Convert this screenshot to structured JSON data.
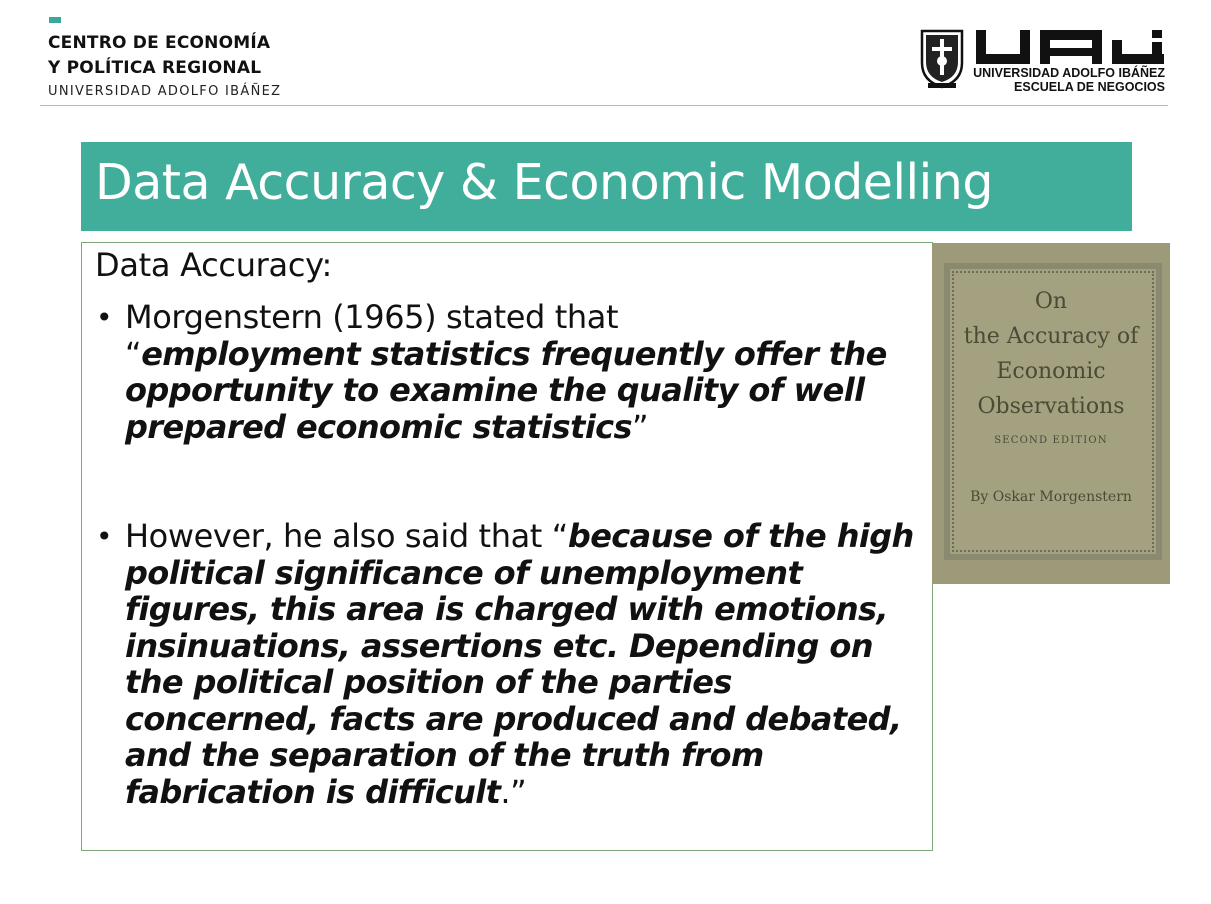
{
  "header": {
    "org_line1": "CENTRO DE ECONOMÍA",
    "org_line2": "Y POLÍTICA REGIONAL",
    "org_line3": "UNIVERSIDAD ADOLFO IBÁÑEZ",
    "logo_line1": "UNIVERSIDAD ADOLFO IBÁÑEZ",
    "logo_line2": "ESCUELA DE NEGOCIOS",
    "accent_color": "#41ae9b"
  },
  "slide": {
    "title": "Data Accuracy & Economic Modelling",
    "subheading": "Data Accuracy:",
    "bullet1_plain": "Morgenstern (1965) stated that",
    "bullet1_open_quote": "“",
    "bullet1_emph": "employment statistics frequently offer the opportunity to examine the quality of well prepared economic statistics",
    "bullet1_close_quote": "”",
    "bullet2_plain": "However, he also said that “",
    "bullet2_emph": "because of the high political significance of unemployment figures, this area is charged with emotions, insinuations, assertions etc. Depending on the political position of the parties concerned, facts are produced and debated, and the separation of the truth from fabrication is difficult",
    "bullet2_close": ".”"
  },
  "book_cover": {
    "line1": "On",
    "line2": "the Accuracy of",
    "line3": "Economic",
    "line4": "Observations",
    "line5": "SECOND EDITION",
    "line6": "By Oskar Morgenstern"
  }
}
